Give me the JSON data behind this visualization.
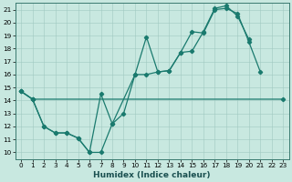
{
  "xlabel": "Humidex (Indice chaleur)",
  "xlim": [
    -0.5,
    23.5
  ],
  "ylim": [
    9.5,
    21.5
  ],
  "xticks": [
    0,
    1,
    2,
    3,
    4,
    5,
    6,
    7,
    8,
    9,
    10,
    11,
    12,
    13,
    14,
    15,
    16,
    17,
    18,
    19,
    20,
    21,
    22,
    23
  ],
  "yticks": [
    10,
    11,
    12,
    13,
    14,
    15,
    16,
    17,
    18,
    19,
    20,
    21
  ],
  "background_color": "#c8e8e0",
  "line_color": "#1a7a6e",
  "series1_x": [
    0,
    1,
    23
  ],
  "series1_y": [
    14.7,
    14.1,
    14.1
  ],
  "series2_x": [
    0,
    1,
    2,
    3,
    4,
    5,
    6,
    7,
    8,
    9,
    10,
    11,
    12,
    13,
    14,
    15,
    16,
    17,
    18,
    19,
    20,
    21
  ],
  "series2_y": [
    14.7,
    14.1,
    12.0,
    11.5,
    11.5,
    11.1,
    10.0,
    10.0,
    12.2,
    13.0,
    16.0,
    18.9,
    16.2,
    16.3,
    17.7,
    19.3,
    19.2,
    21.0,
    21.1,
    20.7,
    18.5,
    16.2
  ],
  "series3_x": [
    0,
    1,
    2,
    3,
    4,
    5,
    6,
    7,
    8,
    10,
    11,
    12,
    13,
    14,
    15,
    16,
    17,
    18,
    19,
    20
  ],
  "series3_y": [
    14.7,
    14.1,
    12.0,
    11.5,
    11.5,
    11.1,
    10.0,
    14.5,
    12.2,
    16.0,
    16.0,
    16.2,
    16.3,
    17.7,
    17.8,
    19.3,
    21.1,
    21.3,
    20.5,
    18.7
  ],
  "xlabel_fontsize": 6.5,
  "tick_fontsize": 5.2,
  "linewidth": 0.9,
  "markersize": 2.2
}
